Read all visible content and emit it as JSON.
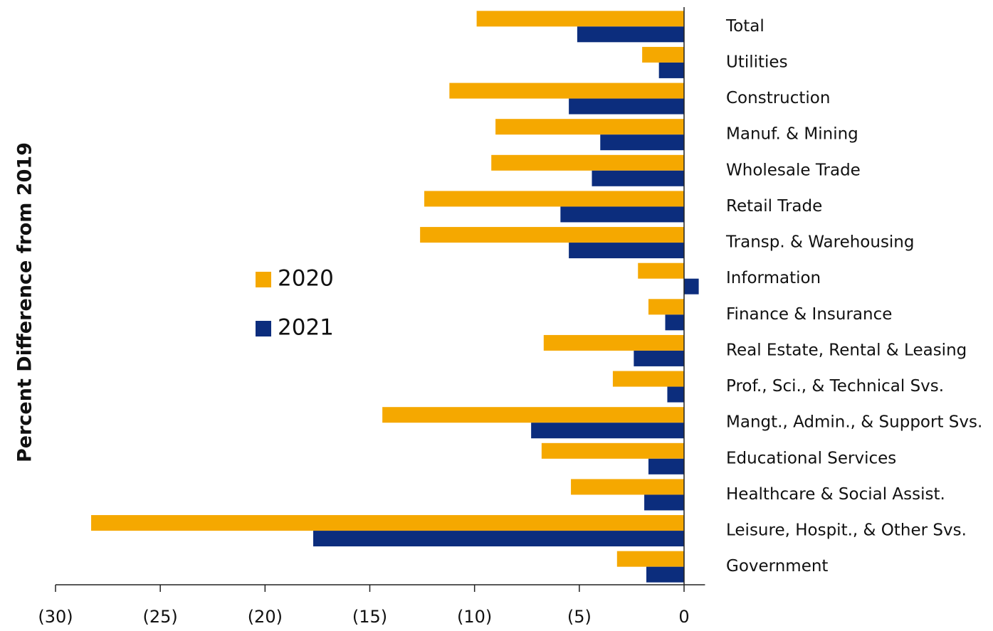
{
  "chart_data": {
    "type": "hbar",
    "y_axis_label": "Percent Difference from 2019",
    "categories": [
      "Total",
      "Utilities",
      "Construction",
      "Manuf. & Mining",
      "Wholesale Trade",
      "Retail Trade",
      "Transp. & Warehousing",
      "Information",
      "Finance & Insurance",
      "Real Estate, Rental & Leasing",
      "Prof., Sci., & Technical Svs.",
      "Mangt., Admin., & Support Svs.",
      "Educational Services",
      "Healthcare & Social Assist.",
      "Leisure, Hospit., & Other Svs.",
      "Government"
    ],
    "series": [
      {
        "name": "2020",
        "color": "#f5a800",
        "values": [
          -9.9,
          -2.0,
          -11.2,
          -9.0,
          -9.2,
          -12.4,
          -12.6,
          -2.2,
          -1.7,
          -6.7,
          -3.4,
          -14.4,
          -6.8,
          -5.4,
          -28.3,
          -3.2
        ]
      },
      {
        "name": "2021",
        "color": "#0c2d7d",
        "values": [
          -5.1,
          -1.2,
          -5.5,
          -4.0,
          -4.4,
          -5.9,
          -5.5,
          0.7,
          -0.9,
          -2.4,
          -0.8,
          -7.3,
          -1.7,
          -1.9,
          -17.7,
          -1.8
        ]
      }
    ],
    "xlim": [
      -30,
      1
    ],
    "xticks": [
      {
        "value": -30,
        "label": "(30)"
      },
      {
        "value": -25,
        "label": "(25)"
      },
      {
        "value": -20,
        "label": "(20)"
      },
      {
        "value": -15,
        "label": "(15)"
      },
      {
        "value": -10,
        "label": "(10)"
      },
      {
        "value": -5,
        "label": "(5)"
      },
      0
    ],
    "legend": "left"
  }
}
